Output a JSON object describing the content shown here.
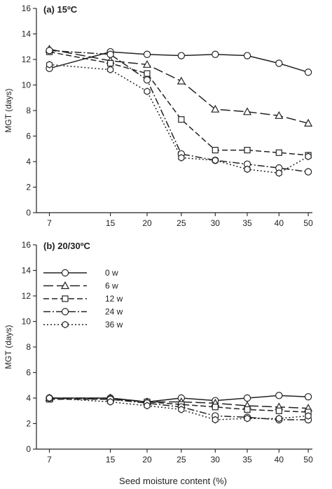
{
  "chart_data": [
    {
      "type": "line",
      "title": "(a) 15ºC",
      "xlabel": "",
      "ylabel": "MGT (days)",
      "x": [
        7,
        15,
        20,
        25,
        30,
        35,
        40,
        50
      ],
      "x_tick_labels": [
        "7",
        "15",
        "20",
        "25",
        "30",
        "35",
        "40",
        "50"
      ],
      "y_tick_labels": [
        "0",
        "2",
        "4",
        "6",
        "8",
        "10",
        "12",
        "14",
        "16"
      ],
      "ylim": [
        0,
        16
      ],
      "legend": "none",
      "series": [
        {
          "label": "0 w",
          "marker": "circle",
          "dash": "solid",
          "values": [
            11.3,
            12.6,
            12.4,
            12.3,
            12.4,
            12.3,
            11.7,
            11.0
          ]
        },
        {
          "label": "6 w",
          "marker": "triangle",
          "dash": "longdash",
          "values": [
            12.8,
            11.9,
            11.6,
            10.3,
            8.1,
            7.9,
            7.6,
            7.0
          ]
        },
        {
          "label": "12 w",
          "marker": "square",
          "dash": "dash",
          "values": [
            12.6,
            11.7,
            10.9,
            7.3,
            4.9,
            4.9,
            4.7,
            4.5
          ]
        },
        {
          "label": "24 w",
          "marker": "circle",
          "dash": "dashdot",
          "values": [
            12.7,
            12.4,
            10.4,
            4.6,
            4.1,
            3.8,
            3.5,
            3.2
          ]
        },
        {
          "label": "36 w",
          "marker": "hexagon",
          "dash": "dashdotdot",
          "values": [
            11.6,
            11.2,
            9.5,
            4.3,
            4.1,
            3.4,
            3.1,
            4.4
          ]
        }
      ]
    },
    {
      "type": "line",
      "title": "(b) 20/30ºC",
      "xlabel": "Seed moisture content (%)",
      "ylabel": "MGT (days)",
      "x": [
        7,
        15,
        20,
        25,
        30,
        35,
        40,
        50
      ],
      "x_tick_labels": [
        "7",
        "15",
        "20",
        "25",
        "30",
        "35",
        "40",
        "50"
      ],
      "y_tick_labels": [
        "0",
        "2",
        "4",
        "6",
        "8",
        "10",
        "12",
        "14",
        "16"
      ],
      "ylim": [
        0,
        16
      ],
      "legend": "top-left",
      "series": [
        {
          "label": "0 w",
          "marker": "circle",
          "dash": "solid",
          "values": [
            4.0,
            4.0,
            3.7,
            4.0,
            3.8,
            4.0,
            4.2,
            4.1
          ]
        },
        {
          "label": "6 w",
          "marker": "triangle",
          "dash": "longdash",
          "values": [
            4.0,
            4.0,
            3.7,
            3.7,
            3.6,
            3.4,
            3.3,
            3.2
          ]
        },
        {
          "label": "12 w",
          "marker": "square",
          "dash": "dash",
          "values": [
            3.9,
            3.9,
            3.7,
            3.5,
            3.3,
            3.1,
            3.0,
            2.9
          ]
        },
        {
          "label": "24 w",
          "marker": "circle",
          "dash": "dashdot",
          "values": [
            4.0,
            3.9,
            3.6,
            3.3,
            2.6,
            2.5,
            2.3,
            2.3
          ]
        },
        {
          "label": "36 w",
          "marker": "hexagon",
          "dash": "dashdotdot",
          "values": [
            4.0,
            3.7,
            3.4,
            3.1,
            2.3,
            2.4,
            2.4,
            2.6
          ]
        }
      ]
    }
  ]
}
